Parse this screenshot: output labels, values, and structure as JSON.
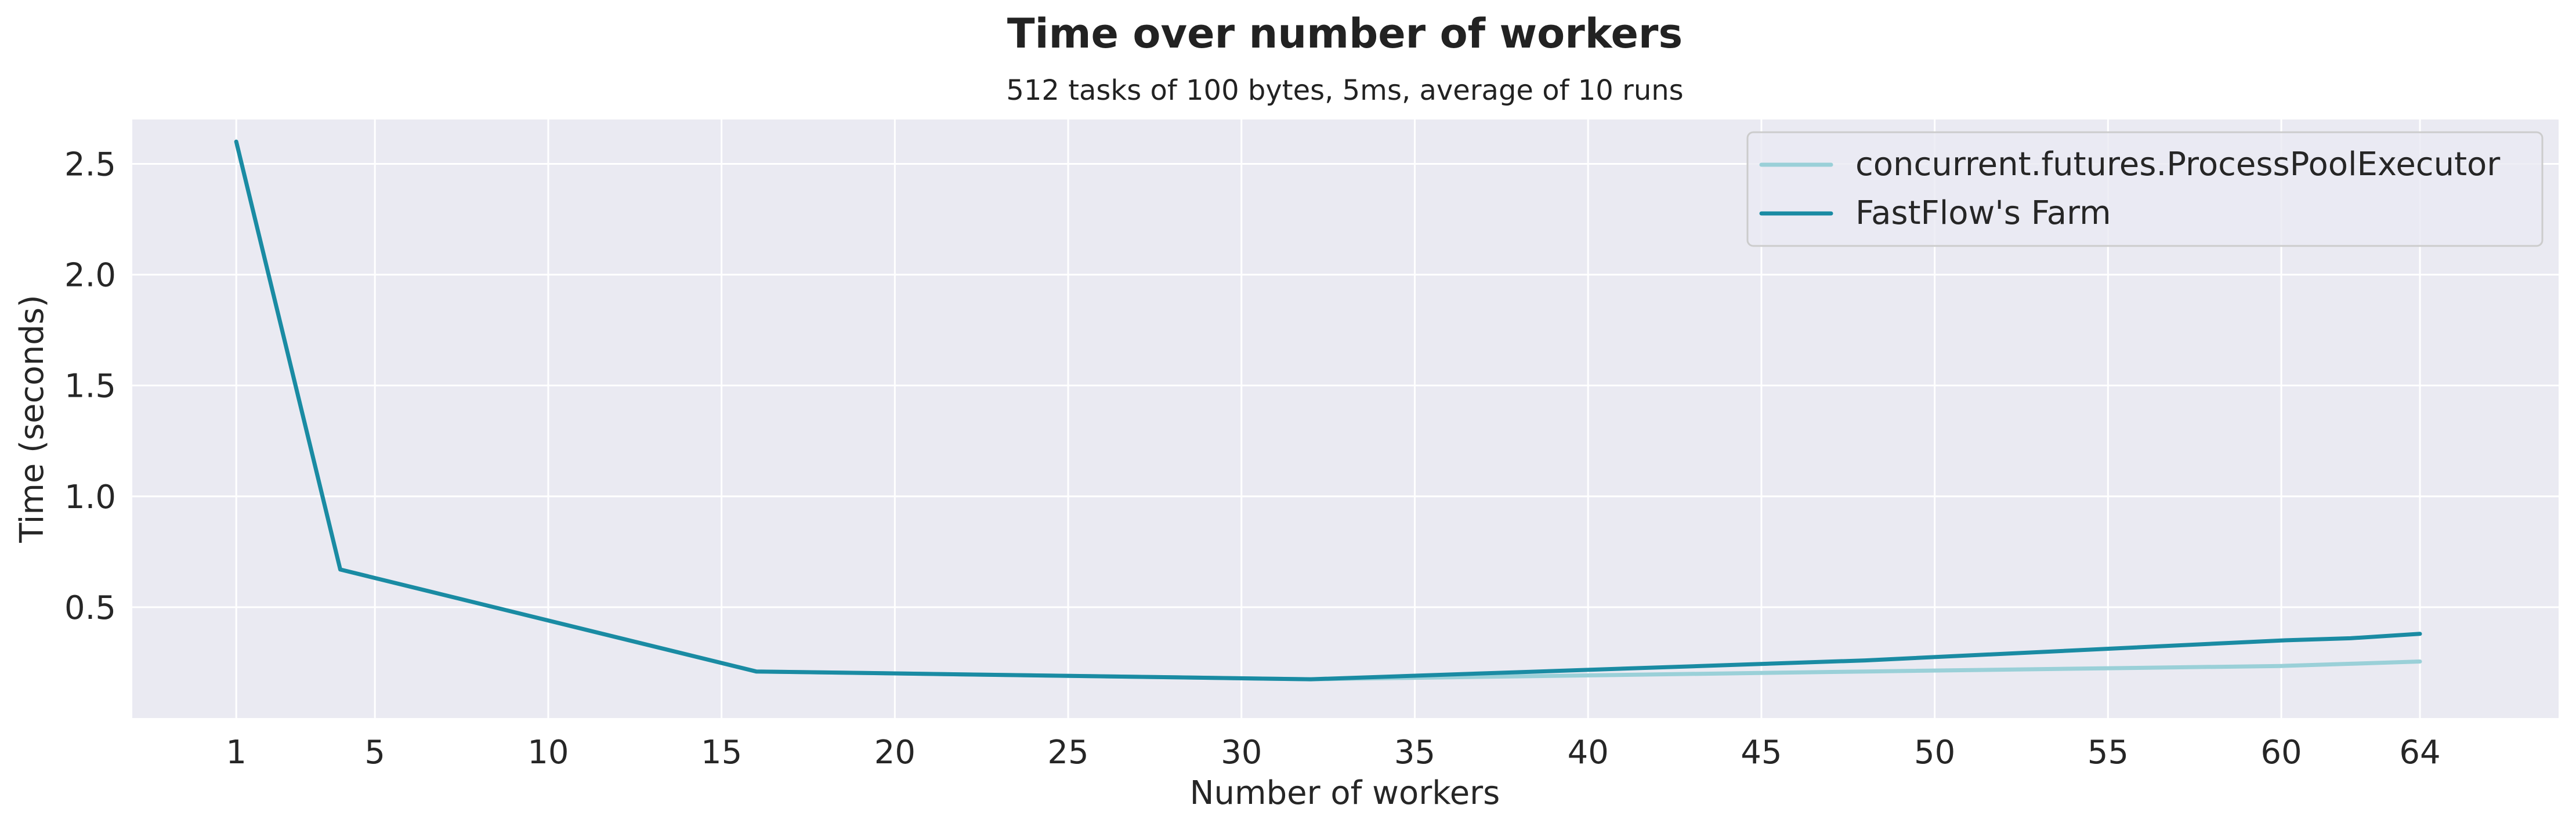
{
  "chart_data": {
    "type": "line",
    "title": "Time over number of workers",
    "subtitle": "512 tasks of 100 bytes, 5ms, average of 10 runs",
    "xlabel": "Number of workers",
    "ylabel": "Time (seconds)",
    "xlim": [
      -2,
      68
    ],
    "ylim": [
      0.0,
      2.7
    ],
    "xticks": [
      1,
      5,
      10,
      15,
      20,
      25,
      30,
      35,
      40,
      45,
      50,
      55,
      60,
      64
    ],
    "yticks": [
      0.5,
      1.0,
      1.5,
      2.0,
      2.5
    ],
    "ytick_labels": [
      "0.5",
      "1.0",
      "1.5",
      "2.0",
      "2.5"
    ],
    "grid": true,
    "legend_position": "top-right",
    "colors": {
      "background": "#eaeaf2",
      "grid": "#ffffff"
    },
    "series": [
      {
        "name": "concurrent.futures.ProcessPoolExecutor",
        "color": "#9ad0d8",
        "x": [
          1,
          4,
          16,
          32,
          48,
          60,
          62,
          64
        ],
        "y": [
          2.6,
          0.67,
          0.21,
          0.175,
          0.21,
          0.235,
          0.245,
          0.255
        ]
      },
      {
        "name": "FastFlow's Farm",
        "color": "#1a8ba3",
        "x": [
          1,
          4,
          16,
          32,
          48,
          60,
          62,
          64
        ],
        "y": [
          2.6,
          0.67,
          0.21,
          0.175,
          0.26,
          0.35,
          0.36,
          0.38
        ]
      }
    ]
  }
}
